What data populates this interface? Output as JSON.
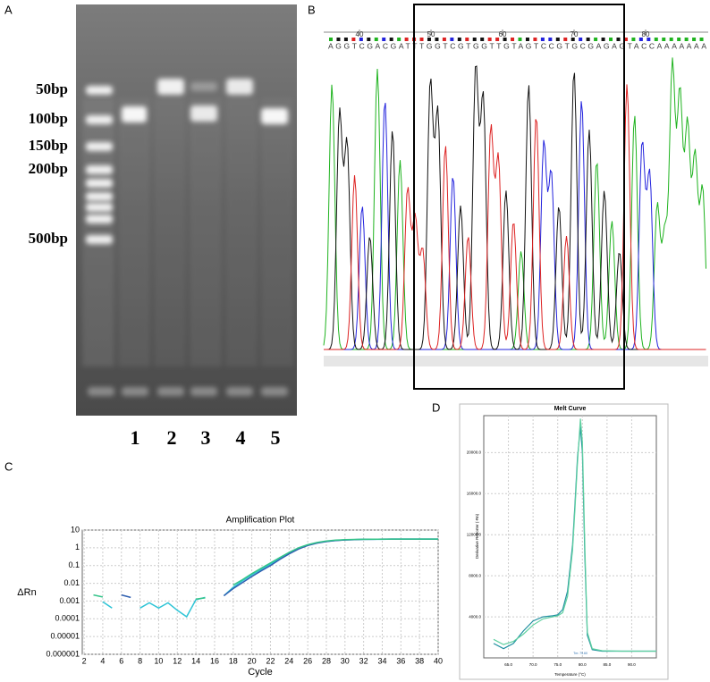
{
  "panel_labels": {
    "a": "A",
    "b": "B",
    "c": "C",
    "d": "D"
  },
  "gel": {
    "ladder": [
      "50bp",
      "100bp",
      "150bp",
      "200bp",
      "500bp"
    ],
    "lanes": [
      "1",
      "2",
      "3",
      "4",
      "5"
    ]
  },
  "sequencing": {
    "positions": [
      40,
      50,
      60,
      70,
      80
    ],
    "sequence": "AGGTCGACGATTTGGTCGTGGTTGTAGTCCGTGCGAGAGTACCAAAAAAA"
  },
  "chart_data": [
    {
      "type": "line",
      "title": "Amplification Plot",
      "y_label": "ΔRn",
      "x_label": "Cycle",
      "log_y": true,
      "grid": true,
      "x": [
        3,
        4,
        5,
        6,
        7,
        8,
        9,
        10,
        11,
        12,
        13,
        14,
        15,
        16,
        17,
        18,
        19,
        20,
        21,
        22,
        23,
        24,
        25,
        26,
        27,
        28,
        29,
        30,
        31,
        32,
        33,
        34,
        35,
        36,
        37,
        38,
        39,
        40
      ],
      "xlim": [
        1.8,
        40
      ],
      "xticks": [
        2,
        4,
        6,
        8,
        10,
        12,
        14,
        16,
        18,
        20,
        22,
        24,
        26,
        28,
        30,
        32,
        34,
        36,
        38,
        40
      ],
      "ylim": [
        1e-06,
        10
      ],
      "yticks": [
        10,
        1,
        0.1,
        0.01,
        0.001,
        0.0001,
        1e-05,
        1e-06
      ],
      "series": [
        {
          "color": "#2ec4d6",
          "values": [
            null,
            0.0009,
            0.0004,
            null,
            null,
            0.0004,
            0.0008,
            0.0004,
            0.0008,
            0.0003,
            0.00013,
            0.0012,
            0.0016,
            null,
            0.002,
            0.006,
            0.014,
            0.03,
            0.06,
            0.12,
            0.25,
            0.5,
            0.9,
            1.4,
            1.9,
            2.3,
            2.6,
            2.8,
            2.9,
            3.0,
            3.0,
            3.0,
            3.1,
            3.1,
            3.1,
            3.1,
            3.1,
            3.1
          ]
        },
        {
          "color": "#2f5fb0",
          "values": [
            null,
            null,
            null,
            0.0022,
            0.0016,
            null,
            null,
            null,
            null,
            null,
            null,
            null,
            null,
            null,
            0.002,
            0.005,
            0.011,
            0.024,
            0.05,
            0.1,
            0.22,
            0.45,
            0.85,
            1.35,
            1.85,
            2.25,
            2.55,
            2.75,
            2.9,
            3.0,
            3.0,
            3.1,
            3.1,
            3.1,
            3.1,
            3.1,
            3.1,
            3.1
          ]
        },
        {
          "color": "#35c48a",
          "values": [
            0.0022,
            0.0017,
            null,
            null,
            null,
            null,
            null,
            null,
            null,
            null,
            null,
            0.0013,
            0.0015,
            null,
            null,
            0.008,
            0.016,
            0.035,
            0.07,
            0.14,
            0.28,
            0.55,
            1.0,
            1.5,
            2.0,
            2.4,
            2.7,
            2.85,
            2.95,
            3.0,
            3.05,
            3.05,
            3.1,
            3.1,
            3.1,
            3.1,
            3.1,
            3.1
          ]
        }
      ]
    },
    {
      "type": "line",
      "title": "Melt Curve",
      "y_label": "Derivative Reporter (-Rn)",
      "x_label": "Temperature (°C)",
      "annotation": "Tm: 79.60",
      "log_y": false,
      "grid": true,
      "x": [
        62,
        64,
        66,
        68,
        70,
        72,
        74,
        75,
        76,
        77,
        78,
        78.5,
        79,
        79.6,
        80,
        80.5,
        81,
        82,
        84,
        88,
        95
      ],
      "xlim": [
        60,
        95
      ],
      "xticks": [
        {
          "value": 65,
          "label": "65.0"
        },
        {
          "value": 70,
          "label": "70.0"
        },
        {
          "value": 75,
          "label": "75.0"
        },
        {
          "value": 80,
          "label": "80.0"
        },
        {
          "value": 85,
          "label": "85.0"
        },
        {
          "value": 90,
          "label": "90.0"
        }
      ],
      "ylim": [
        0,
        23600
      ],
      "yticks": [
        {
          "value": 4000,
          "label": "4000.0"
        },
        {
          "value": 8000,
          "label": "8000.0"
        },
        {
          "value": 12000,
          "label": "12000.0"
        },
        {
          "value": 16000,
          "label": "16000.0"
        },
        {
          "value": 20000,
          "label": "20000.0"
        }
      ],
      "series": [
        {
          "color": "#1f8fa0",
          "values": [
            1400,
            900,
            1400,
            2600,
            3600,
            4000,
            4100,
            4200,
            4700,
            6500,
            11000,
            15000,
            19500,
            22500,
            20000,
            10000,
            2200,
            800,
            650,
            650,
            650
          ]
        },
        {
          "color": "#5fd0a0",
          "values": [
            1800,
            1300,
            1600,
            2300,
            3200,
            3800,
            4000,
            4100,
            4400,
            6000,
            10500,
            14500,
            19000,
            23300,
            21000,
            11000,
            2500,
            900,
            700,
            650,
            650
          ]
        }
      ]
    }
  ]
}
